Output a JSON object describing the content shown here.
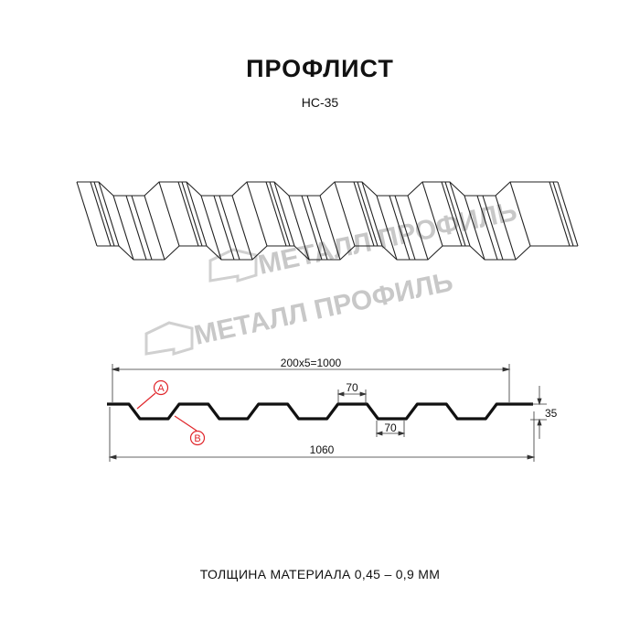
{
  "header": {
    "title": "ПРОФЛИСТ",
    "subtitle": "НС-35"
  },
  "watermark": {
    "text": "МЕТАЛЛ ПРОФИЛЬ"
  },
  "section": {
    "dimensions": {
      "working_width": "200x5=1000",
      "full_width": "1060",
      "rib_top": "70",
      "rib_bottom": "70",
      "height": "35"
    },
    "markers": {
      "a": "A",
      "b": "B"
    },
    "marker_color": "#e0262b"
  },
  "footer": {
    "thickness": "ТОЛЩИНА МАТЕРИАЛА 0,45 – 0,9 ММ"
  }
}
